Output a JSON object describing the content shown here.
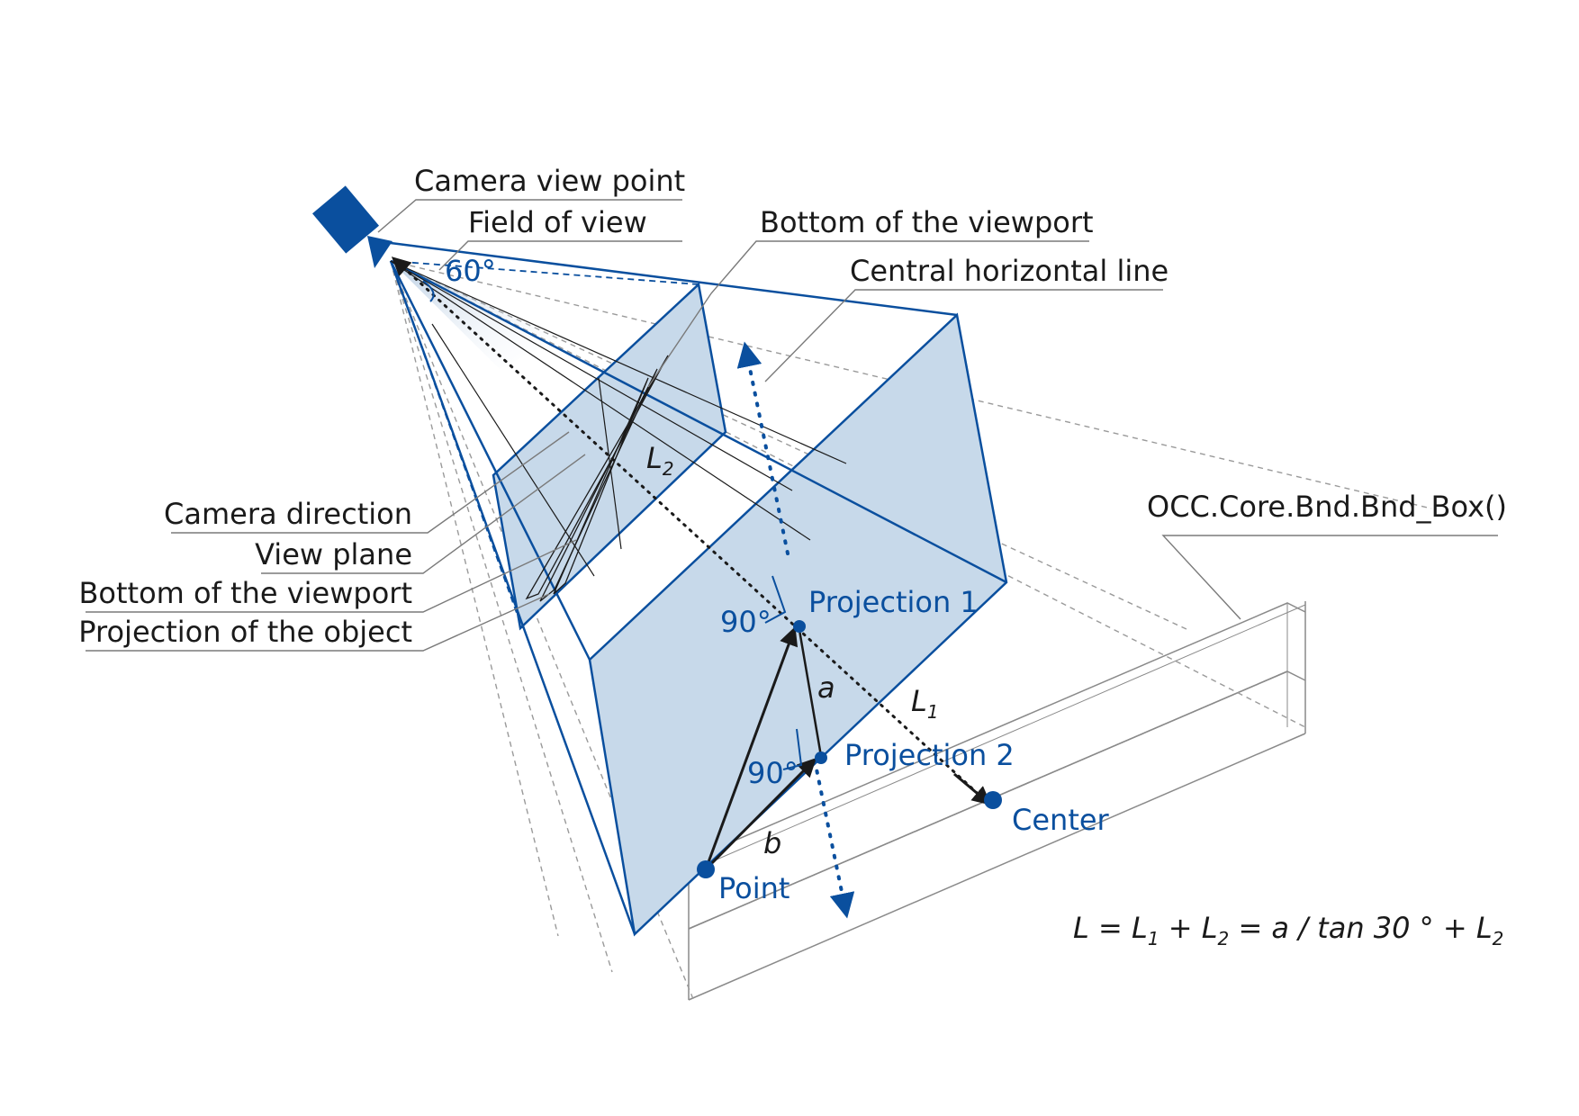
{
  "colors": {
    "blue": "#0a4f9e",
    "plane_fill": "#c7d9ea",
    "dark": "#1a1a1a",
    "gray": "#8a8a8a"
  },
  "labels": {
    "camera_view_point": "Camera view point",
    "field_of_view": "Field of view",
    "bottom_of_viewport_top": "Bottom of the viewport",
    "central_horizontal_line": "Central horizontal line",
    "camera_direction": "Camera direction",
    "view_plane": "View plane",
    "bottom_of_viewport_left": "Bottom of the viewport",
    "projection_of_object": "Projection of the object",
    "bnd_box": "OCC.Core.Bnd.Bnd_Box()",
    "fov_angle": "60°",
    "projection_1": "Projection 1",
    "projection_2": "Projection 2",
    "center": "Center",
    "point": "Point",
    "right_angle_1": "90°",
    "right_angle_2": "90°",
    "a": "a",
    "b": "b",
    "L": "L",
    "sub_1": "1",
    "sub_2": "2"
  },
  "formula": {
    "p1": "L = L",
    "s1": "1",
    "p2": " + L",
    "s2": "2",
    "p3": " = a / tan 30 ° + L",
    "s3": "2"
  },
  "icons": [
    "camera-icon"
  ]
}
